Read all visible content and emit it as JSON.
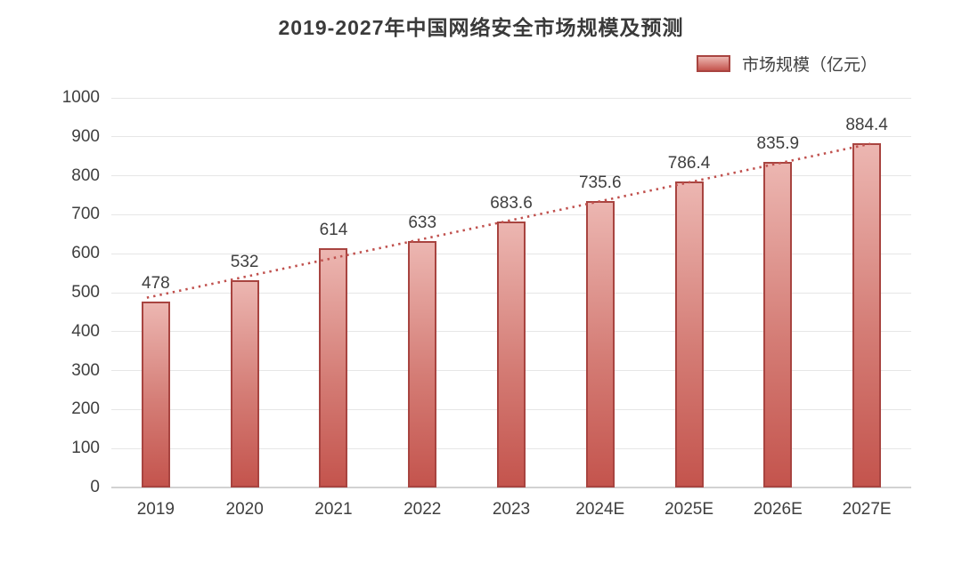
{
  "title": "2019-2027年中国网络安全市场规模及预测",
  "legend": {
    "label": "市场规模（亿元）"
  },
  "chart_data": {
    "type": "bar",
    "title": "2019-2027年中国网络安全市场规模及预测",
    "categories": [
      "2019",
      "2020",
      "2021",
      "2022",
      "2023",
      "2024E",
      "2025E",
      "2026E",
      "2027E"
    ],
    "series": [
      {
        "name": "市场规模（亿元）",
        "values": [
          478,
          532,
          614,
          633,
          683.6,
          735.6,
          786.4,
          835.9,
          884.4
        ],
        "value_labels": [
          "478",
          "532",
          "614",
          "633",
          "683.6",
          "735.6",
          "786.4",
          "835.9",
          "884.4"
        ]
      }
    ],
    "xlabel": "",
    "ylabel": "",
    "ylim": [
      0,
      1000
    ],
    "ytick_step": 100,
    "yticks": [
      "0",
      "100",
      "200",
      "300",
      "400",
      "500",
      "600",
      "700",
      "800",
      "900",
      "1000"
    ],
    "grid": true,
    "legend_position": "top-right",
    "trendline": {
      "style": "dotted",
      "from_category": "2019",
      "to_category": "2027E"
    }
  },
  "colors": {
    "title_text": "#3a3a3a",
    "text": "#3f3f3f",
    "gridline": "#e6e6e6",
    "axis_line": "#d2d2d2",
    "bar_top": "#ecb6b1",
    "bar_mid": "#d47c75",
    "bar_bottom": "#c4544d",
    "bar_border": "#a84440",
    "trendline": "#c0504d",
    "background": "#ffffff"
  }
}
